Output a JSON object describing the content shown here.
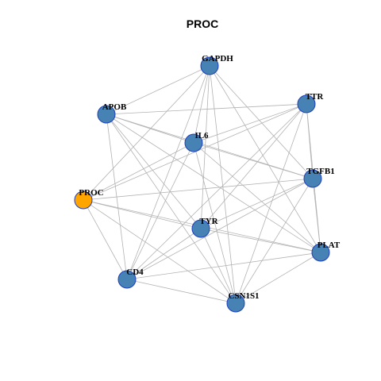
{
  "title": "PROC",
  "nodes": [
    {
      "label": "GAPDH",
      "color": "#4682b4"
    },
    {
      "label": "TTR",
      "color": "#4682b4"
    },
    {
      "label": "APOB",
      "color": "#4682b4"
    },
    {
      "label": "IL6",
      "color": "#4682b4"
    },
    {
      "label": "TGFB1",
      "color": "#4682b4"
    },
    {
      "label": "PROC",
      "color": "#ffa500"
    },
    {
      "label": "TYR",
      "color": "#4682b4"
    },
    {
      "label": "PLAT",
      "color": "#4682b4"
    },
    {
      "label": "CD4",
      "color": "#4682b4"
    },
    {
      "label": "CSN1S1",
      "color": "#4682b4"
    }
  ]
}
